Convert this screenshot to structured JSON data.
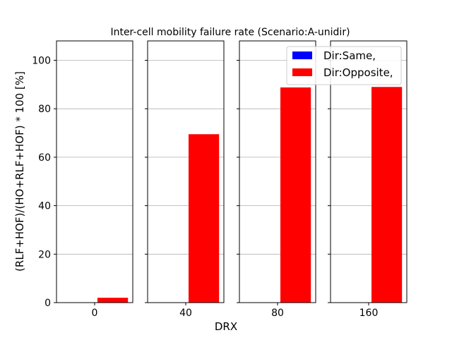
{
  "chart_data": {
    "type": "bar",
    "title": "Inter-cell mobility failure rate (Scenario:A-unidir)",
    "xlabel": "DRX",
    "ylabel": "(RLF+HOF)/(HO+RLF+HOF) * 100 [%]",
    "ylim": [
      0,
      108
    ],
    "yticks": [
      0,
      20,
      40,
      60,
      80,
      100
    ],
    "grid": "y",
    "categories": [
      "0",
      "40",
      "80",
      "160"
    ],
    "series": [
      {
        "name": "Dir:Same,",
        "color": "#0000ff",
        "values": [
          0,
          0,
          0,
          0
        ]
      },
      {
        "name": "Dir:Opposite,",
        "color": "#ff0000",
        "values": [
          2,
          69.5,
          88.8,
          89
        ]
      }
    ],
    "legend_position": "top-right"
  }
}
